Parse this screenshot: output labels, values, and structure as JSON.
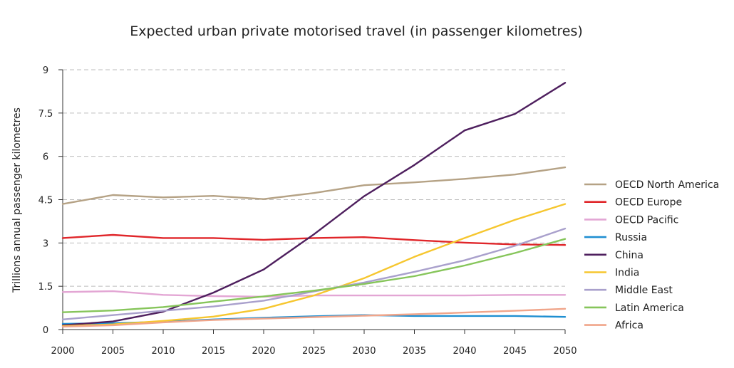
{
  "chart_data": {
    "type": "line",
    "title": "Expected urban private motorised travel (in passenger kilometres)",
    "xlabel": "",
    "ylabel": "Trillions annual passenger kilometres",
    "x": [
      2000,
      2005,
      2010,
      2015,
      2020,
      2025,
      2030,
      2035,
      2040,
      2045,
      2050
    ],
    "x_tick_labels": [
      "2000",
      "2005",
      "2010",
      "2015",
      "2020",
      "2025",
      "2030",
      "2035",
      "2040",
      "2045",
      "2050"
    ],
    "y_ticks": [
      0,
      1.5,
      3,
      4.5,
      6,
      7.5,
      9
    ],
    "y_tick_labels": [
      "0",
      "1.5",
      "3",
      "4.5",
      "6",
      "7.5",
      "9"
    ],
    "xlim": [
      2000,
      2050
    ],
    "ylim": [
      0,
      9
    ],
    "grid": "horizontal dashed",
    "legend_position": "right",
    "series": [
      {
        "name": "OECD North America",
        "color": "#b5a285",
        "values": [
          4.35,
          4.66,
          4.58,
          4.63,
          4.52,
          4.73,
          5.0,
          5.1,
          5.22,
          5.37,
          5.62
        ]
      },
      {
        "name": "OECD Europe",
        "color": "#e0262a",
        "values": [
          3.17,
          3.28,
          3.17,
          3.17,
          3.11,
          3.17,
          3.2,
          3.1,
          3.01,
          2.95,
          2.93
        ]
      },
      {
        "name": "OECD Pacific",
        "color": "#e3a6d4",
        "values": [
          1.3,
          1.33,
          1.2,
          1.16,
          1.14,
          1.18,
          1.18,
          1.18,
          1.18,
          1.2,
          1.2
        ]
      },
      {
        "name": "Russia",
        "color": "#1f8fd1",
        "values": [
          0.2,
          0.22,
          0.27,
          0.35,
          0.41,
          0.46,
          0.5,
          0.47,
          0.47,
          0.47,
          0.44
        ]
      },
      {
        "name": "China",
        "color": "#4e1f5e",
        "values": [
          0.15,
          0.28,
          0.62,
          1.28,
          2.08,
          3.3,
          4.62,
          5.7,
          6.9,
          7.47,
          8.55
        ]
      },
      {
        "name": "India",
        "color": "#f6c62e",
        "values": [
          0.12,
          0.18,
          0.3,
          0.45,
          0.72,
          1.18,
          1.78,
          2.52,
          3.17,
          3.8,
          4.35
        ]
      },
      {
        "name": "Middle East",
        "color": "#a9a0cc",
        "values": [
          0.35,
          0.5,
          0.65,
          0.8,
          1.0,
          1.32,
          1.63,
          2.0,
          2.4,
          2.9,
          3.5
        ]
      },
      {
        "name": "Latin America",
        "color": "#86c55a",
        "values": [
          0.6,
          0.66,
          0.78,
          0.97,
          1.15,
          1.35,
          1.58,
          1.85,
          2.22,
          2.65,
          3.14
        ]
      },
      {
        "name": "Africa",
        "color": "#f0a58a",
        "values": [
          0.1,
          0.15,
          0.25,
          0.33,
          0.38,
          0.43,
          0.48,
          0.53,
          0.59,
          0.65,
          0.72
        ]
      }
    ]
  }
}
